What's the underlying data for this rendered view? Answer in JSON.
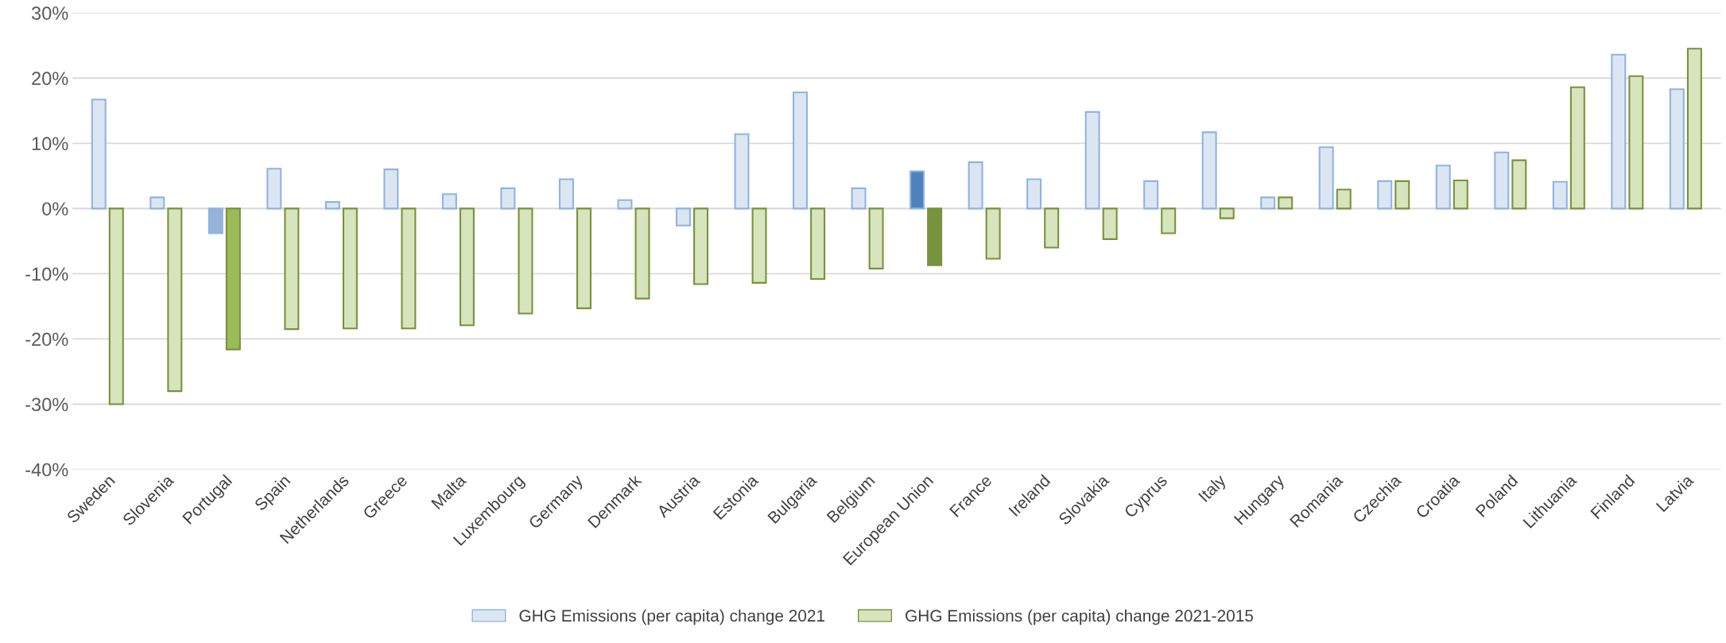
{
  "chart_data": {
    "type": "bar",
    "categories": [
      "Sweden",
      "Slovenia",
      "Portugal",
      "Spain",
      "Netherlands",
      "Greece",
      "Malta",
      "Luxembourg",
      "Germany",
      "Denmark",
      "Austria",
      "Estonia",
      "Bulgaria",
      "Belgium",
      "European Union",
      "France",
      "Ireland",
      "Slovakia",
      "Cyprus",
      "Italy",
      "Hungary",
      "Romania",
      "Czechia",
      "Croatia",
      "Poland",
      "Lithuania",
      "Finland",
      "Latvia"
    ],
    "series": [
      {
        "name": "GHG Emissions (per capita) change 2021",
        "color": "#8eb4e3",
        "values": [
          16.7,
          1.7,
          -3.8,
          6.1,
          1.0,
          6.0,
          2.2,
          3.1,
          4.5,
          1.3,
          -2.6,
          11.4,
          17.8,
          3.1,
          5.7,
          7.1,
          4.5,
          14.8,
          4.2,
          11.7,
          1.7,
          9.4,
          4.2,
          6.6,
          8.6,
          4.1,
          23.6,
          18.3
        ],
        "colors": [
          "#dce6f2",
          "#dce6f2",
          "#95b3d7",
          "#dce6f2",
          "#dce6f2",
          "#dce6f2",
          "#dce6f2",
          "#dce6f2",
          "#dce6f2",
          "#dce6f2",
          "#dce6f2",
          "#dce6f2",
          "#dce6f2",
          "#dce6f2",
          "#4f81bd",
          "#dce6f2",
          "#dce6f2",
          "#dce6f2",
          "#dce6f2",
          "#dce6f2",
          "#dce6f2",
          "#dce6f2",
          "#dce6f2",
          "#dce6f2",
          "#dce6f2",
          "#dce6f2",
          "#dce6f2",
          "#dce6f2"
        ]
      },
      {
        "name": "GHG Emissions (per capita) change 2021-2015",
        "color": "#77933c",
        "values": [
          -30.0,
          -28.0,
          -21.6,
          -18.5,
          -18.4,
          -18.4,
          -17.9,
          -16.1,
          -15.3,
          -13.8,
          -11.6,
          -11.4,
          -10.8,
          -9.2,
          -8.7,
          -7.7,
          -6.0,
          -4.7,
          -3.8,
          -1.5,
          1.7,
          2.9,
          4.2,
          4.3,
          7.4,
          18.6,
          20.3,
          24.5
        ],
        "colors": [
          "#d7e4bd",
          "#d7e4bd",
          "#9bbb59",
          "#d7e4bd",
          "#d7e4bd",
          "#d7e4bd",
          "#d7e4bd",
          "#d7e4bd",
          "#d7e4bd",
          "#d7e4bd",
          "#d7e4bd",
          "#d7e4bd",
          "#d7e4bd",
          "#d7e4bd",
          "#77933c",
          "#d7e4bd",
          "#d7e4bd",
          "#d7e4bd",
          "#d7e4bd",
          "#d7e4bd",
          "#d7e4bd",
          "#d7e4bd",
          "#d7e4bd",
          "#d7e4bd",
          "#d7e4bd",
          "#d7e4bd",
          "#d7e4bd",
          "#d7e4bd"
        ]
      }
    ],
    "ylim": [
      -40,
      30
    ],
    "yticks": [
      {
        "value": -40,
        "label": "-40%"
      },
      {
        "value": -30,
        "label": "-30%"
      },
      {
        "value": -20,
        "label": "-20%"
      },
      {
        "value": -10,
        "label": "-10%"
      },
      {
        "value": 0,
        "label": "0%"
      },
      {
        "value": 10,
        "label": "10%"
      },
      {
        "value": 20,
        "label": "20%"
      },
      {
        "value": 30,
        "label": "30%"
      }
    ],
    "grid": "y",
    "legend": "bottom"
  }
}
